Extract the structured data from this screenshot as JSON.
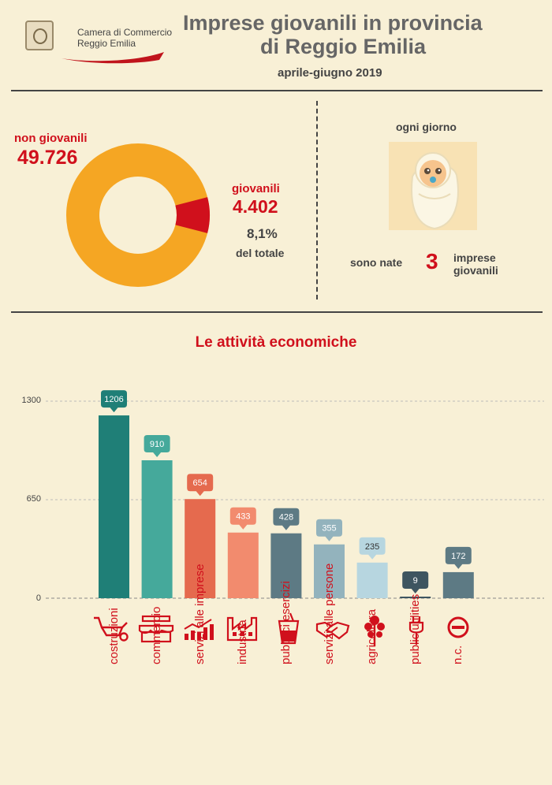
{
  "header": {
    "logo_line1": "Camera di Commercio",
    "logo_line2": "Reggio Emilia",
    "title_line1": "Imprese giovanili in provincia",
    "title_line2": "di Reggio Emilia",
    "subtitle": "aprile-giugno 2019"
  },
  "donut": {
    "non_giovanili_label": "non giovanili",
    "non_giovanili_value": "49.726",
    "giovanili_label": "giovanili",
    "giovanili_value": "4.402",
    "percent": "8,1%",
    "percent_caption": "del totale",
    "share_giovanili": 0.081,
    "color_non_giovanili": "#f5a623",
    "color_giovanili": "#d0101c"
  },
  "daily": {
    "heading": "ogni giorno",
    "prefix": "sono nate",
    "number": "3",
    "suffix_line1": "imprese",
    "suffix_line2": "giovanili"
  },
  "section_title": "Le attività economiche",
  "chart_data": {
    "type": "bar",
    "categories": [
      "costruzioni",
      "commercio",
      "servizi alle imprese",
      "industria",
      "pubblici esercizi",
      "servizi alle persone",
      "agricoltura",
      "public utilities",
      "n.c."
    ],
    "values": [
      1206,
      910,
      654,
      433,
      428,
      355,
      235,
      9,
      172
    ],
    "colors": [
      "#1f7f77",
      "#45a99b",
      "#e56a4e",
      "#f28b6e",
      "#5d7a84",
      "#93b3bd",
      "#b7d6e0",
      "#3e5560",
      "#5d7a84"
    ],
    "ylim": [
      0,
      1300
    ],
    "yticks": [
      "1300",
      "650",
      "0"
    ],
    "icons": [
      "wheelbarrow-icon",
      "shop-icon",
      "growth-chart-icon",
      "factory-icon",
      "drink-icon",
      "handshake-icon",
      "tree-icon",
      "plug-icon",
      "no-entry-icon"
    ],
    "grid": true
  }
}
